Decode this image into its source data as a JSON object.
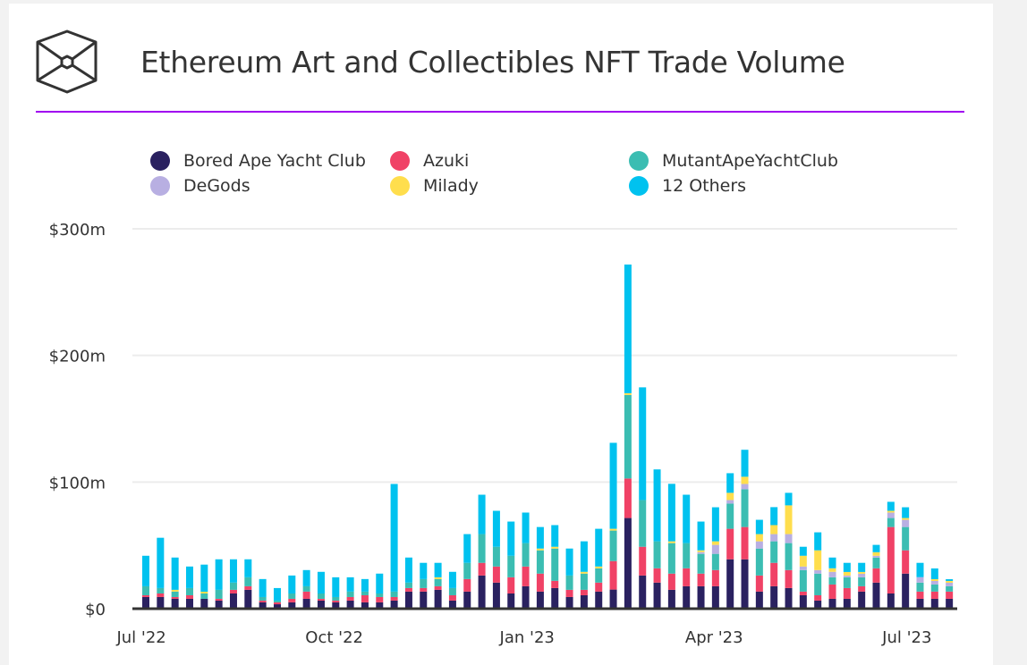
{
  "title": "Ethereum Art and Collectibles NFT Trade Volume",
  "colors": {
    "bayc": "#2a2160",
    "azuki": "#f04266",
    "mayc": "#3bbdb2",
    "degods": "#b8afe2",
    "milady": "#ffde4d",
    "others": "#00c2ef",
    "accent_rule": "#a000f0"
  },
  "legend": [
    {
      "label": "Bored Ape Yacht Club",
      "key": "bayc"
    },
    {
      "label": "Azuki",
      "key": "azuki"
    },
    {
      "label": "MutantApeYachtClub",
      "key": "mayc"
    },
    {
      "label": "DeGods",
      "key": "degods"
    },
    {
      "label": "Milady",
      "key": "milady"
    },
    {
      "label": "12 Others",
      "key": "others"
    }
  ],
  "chart_data": {
    "type": "bar",
    "stacked": true,
    "title": "Ethereum Art and Collectibles NFT Trade Volume",
    "unit": "USD millions, weekly",
    "ylim": [
      0,
      300
    ],
    "yticks": [
      {
        "value": 0,
        "label": "$0"
      },
      {
        "value": 100,
        "label": "$100m"
      },
      {
        "value": 200,
        "label": "$200m"
      },
      {
        "value": 300,
        "label": "$300m"
      }
    ],
    "xticks": [
      {
        "week": -0.3,
        "label": "Jul '22"
      },
      {
        "week": 12.9,
        "label": "Oct '22"
      },
      {
        "week": 26.1,
        "label": "Jan '23"
      },
      {
        "week": 38.9,
        "label": "Apr '23"
      },
      {
        "week": 52.1,
        "label": "Jul '23"
      }
    ],
    "grid": true,
    "legend_position": "top",
    "series": [
      {
        "name": "Bored Ape Yacht Club",
        "key": "bayc",
        "values": [
          9.2,
          9.2,
          7.8,
          7.8,
          7.8,
          6.4,
          12,
          14.9,
          5,
          3.5,
          5,
          7.8,
          6.4,
          5,
          6.4,
          5,
          5,
          6.4,
          13.5,
          13.5,
          14.9,
          6.4,
          13.5,
          26.2,
          20.6,
          12,
          17.7,
          13.5,
          16.3,
          9.2,
          10.6,
          13.5,
          15.1,
          71.6,
          26.2,
          20.6,
          14.9,
          17.7,
          17.7,
          17.7,
          39,
          39,
          13.5,
          17.7,
          16.3,
          10.6,
          6.4,
          7.8,
          7.8,
          13.5,
          20.6,
          12,
          27.7,
          7.8,
          7.8,
          7.8
        ]
      },
      {
        "name": "Azuki",
        "key": "azuki",
        "values": [
          1.4,
          2.8,
          1.4,
          2.8,
          0,
          1.4,
          2.9,
          2.8,
          1.4,
          1.5,
          2.8,
          5.7,
          1.4,
          1.4,
          2.8,
          5.6,
          4.2,
          2.8,
          2.8,
          2.8,
          2.8,
          4.2,
          9.9,
          10,
          12.7,
          12.8,
          15.6,
          14.2,
          5.7,
          5.7,
          4.3,
          7.1,
          22.5,
          31.2,
          22.7,
          11.3,
          12.8,
          14.2,
          10,
          12.8,
          24.1,
          25.5,
          12.7,
          18.5,
          14.2,
          2.9,
          4.2,
          11.3,
          8.5,
          4.2,
          11.3,
          52.5,
          18.4,
          5.7,
          5.7,
          5.7
        ]
      },
      {
        "name": "MutantApeYachtClub",
        "key": "mayc",
        "values": [
          7.1,
          4.3,
          4.3,
          5.7,
          4.2,
          7.1,
          5.7,
          7.1,
          2.8,
          1.4,
          4.2,
          4.2,
          4.2,
          2.8,
          4.3,
          2.9,
          2.8,
          4.3,
          4.3,
          7.1,
          5.7,
          5.7,
          12.8,
          22.7,
          15.6,
          17,
          18.5,
          18.4,
          25.5,
          11.3,
          12.8,
          11.3,
          24.1,
          66,
          36.9,
          21.3,
          24.1,
          19.9,
          15.6,
          12.8,
          19.9,
          29.8,
          21.3,
          17,
          21.3,
          17,
          17.1,
          5.7,
          8.5,
          7.1,
          8.5,
          7.1,
          18.4,
          7.1,
          5.6,
          4.2
        ]
      },
      {
        "name": "DeGods",
        "key": "degods",
        "values": [
          0,
          0,
          0,
          0,
          0,
          0,
          0,
          0,
          0,
          0,
          0,
          0,
          0,
          0,
          0,
          0,
          0,
          0,
          0,
          0,
          0,
          0,
          0,
          0,
          0,
          0,
          0,
          0,
          0,
          0,
          0,
          0,
          0,
          0,
          0,
          0,
          0,
          0,
          1.4,
          7.1,
          2.8,
          4.2,
          5.7,
          5.7,
          7.1,
          2.8,
          2.8,
          4.3,
          1.4,
          2.8,
          1.4,
          4.3,
          5.7,
          4.3,
          2.8,
          2.8
        ]
      },
      {
        "name": "Milady",
        "key": "milady",
        "values": [
          0,
          0,
          1.4,
          0,
          1.4,
          0,
          0,
          0,
          0,
          0,
          0,
          0,
          0,
          0,
          0,
          0,
          0,
          0,
          0,
          0,
          1.4,
          0,
          0,
          0,
          0,
          0,
          0,
          1.4,
          1.4,
          0,
          1.4,
          1.4,
          1.4,
          1.4,
          0,
          0,
          1.4,
          0,
          1.4,
          2.8,
          5.7,
          5.7,
          5.7,
          7.1,
          22.7,
          8.5,
          15.6,
          2.8,
          2.8,
          1.4,
          2.8,
          1.4,
          1.4,
          0,
          1.4,
          1.4
        ]
      },
      {
        "name": "12 Others",
        "key": "others",
        "values": [
          24.1,
          39.7,
          25.5,
          17,
          21.4,
          24.1,
          18.4,
          14.2,
          14.2,
          9.9,
          14.2,
          12.8,
          17.1,
          15.6,
          11.3,
          9.9,
          15.7,
          85,
          19.8,
          12.8,
          11.4,
          12.8,
          22.7,
          31.1,
          28.4,
          27,
          24.1,
          17,
          17.1,
          21.3,
          24.1,
          29.8,
          67.9,
          101.6,
          89,
          56.8,
          45.4,
          38.2,
          22.7,
          26.9,
          15.5,
          21.3,
          11.3,
          14.2,
          9.9,
          7.1,
          14.2,
          8.5,
          7.2,
          7.2,
          5.8,
          7.1,
          8.5,
          11.3,
          8.5,
          1.4
        ]
      }
    ]
  }
}
